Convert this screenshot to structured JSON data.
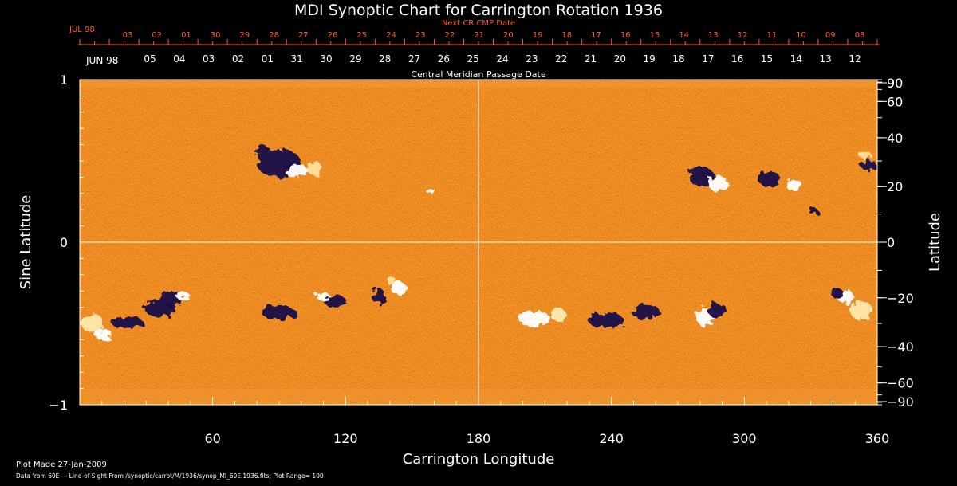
{
  "chart_data": {
    "type": "heatmap",
    "title": "MDI Synoptic Chart for Carrington Rotation 1936",
    "xlabel": "Carrington Longitude",
    "ylabel_left": "Sine Latitude",
    "ylabel_right": "Latitude",
    "xlim": [
      0,
      360
    ],
    "ylim": [
      -1,
      1
    ],
    "x_ticks": [
      "60",
      "120",
      "180",
      "240",
      "300",
      "360"
    ],
    "y_ticks_left": [
      "1",
      "0",
      "−1"
    ],
    "y_ticks_right": [
      "90",
      "60",
      "40",
      "20",
      "0",
      "−20",
      "−40",
      "−60",
      "−90"
    ],
    "y_ticks_right_values": [
      90,
      60,
      40,
      20,
      0,
      -20,
      -40,
      -60,
      -90
    ],
    "top_axis_outer_label": "Next CR CMP Date",
    "top_axis_outer_month": "JUL 98",
    "top_axis_outer_dates": [
      "03",
      "02",
      "01",
      "30",
      "29",
      "28",
      "27",
      "26",
      "25",
      "24",
      "23",
      "22",
      "21",
      "20",
      "19",
      "18",
      "17",
      "16",
      "15",
      "14",
      "13",
      "12",
      "11",
      "10",
      "09",
      "08"
    ],
    "top_axis_inner_label": "Central Meridian Passage Date",
    "top_axis_inner_month": "JUN 98",
    "top_axis_inner_dates": [
      "05",
      "04",
      "03",
      "02",
      "01",
      "31",
      "30",
      "29",
      "28",
      "27",
      "26",
      "25",
      "24",
      "23",
      "22",
      "21",
      "20",
      "19",
      "18",
      "17",
      "16",
      "15",
      "14",
      "13",
      "12"
    ],
    "gridlines": {
      "x": [
        180
      ],
      "y": [
        0
      ]
    },
    "colors": {
      "background": "#cf4310",
      "positive": "#ffffff",
      "negative": "#140a4a",
      "text_secondary": "#ff5a2a"
    }
  },
  "footer": {
    "plot_made": "Plot Made 27-Jan-2009",
    "data_from": "Data from 60E — Line-of-Sight From /synoptic/carrot/M/1936/synop_Ml_60E.1936.fits; Plot Range= 100"
  }
}
